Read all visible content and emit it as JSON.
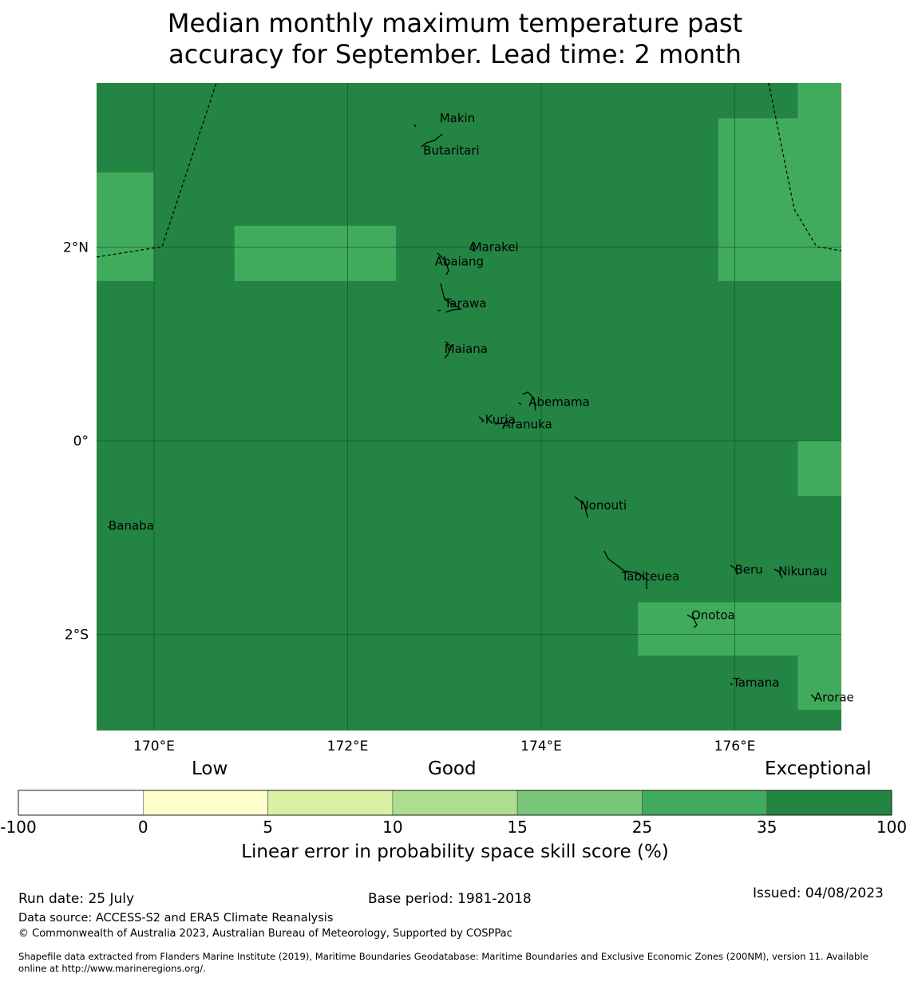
{
  "title_line1": "Median monthly maximum temperature past",
  "title_line2": "accuracy for September. Lead time: 2 month",
  "map": {
    "lon_range": [
      169.4,
      177.1
    ],
    "lat_range": [
      -3.0,
      3.2
    ],
    "lat_ticks": [
      {
        "value": 2,
        "label": "2°N"
      },
      {
        "value": 0,
        "label": "0°"
      },
      {
        "value": -2,
        "label": "2°S"
      }
    ],
    "lon_ticks": [
      {
        "value": 170,
        "label": "170°E"
      },
      {
        "value": 172,
        "label": "172°E"
      },
      {
        "value": 174,
        "label": "174°E"
      },
      {
        "value": 176,
        "label": "176°E"
      }
    ],
    "background_category": "35-100",
    "background_color": "#238443",
    "good_cells": [
      {
        "lon": [
          169.4,
          170.0
        ],
        "lat": [
          1.65,
          2.77
        ],
        "category": "25-35"
      },
      {
        "lon": [
          170.83,
          172.5
        ],
        "lat": [
          1.65,
          2.22
        ],
        "category": "25-35"
      },
      {
        "lon": [
          175.83,
          177.1
        ],
        "lat": [
          1.65,
          3.33
        ],
        "category": "25-35"
      },
      {
        "lon": [
          176.65,
          177.1
        ],
        "lat": [
          3.33,
          3.7
        ],
        "category": "25-35"
      },
      {
        "lon": [
          176.65,
          177.1
        ],
        "lat": [
          -0.57,
          0.0
        ],
        "category": "25-35"
      },
      {
        "lon": [
          175.0,
          177.1
        ],
        "lat": [
          -2.22,
          -1.67
        ],
        "category": "25-35"
      },
      {
        "lon": [
          176.65,
          177.1
        ],
        "lat": [
          -2.78,
          -2.22
        ],
        "category": "25-35"
      }
    ],
    "good_color": "#41ab5d",
    "islands": [
      {
        "name": "Makin",
        "lon": 172.95,
        "lat": 3.33
      },
      {
        "name": "Butaritari",
        "lon": 172.78,
        "lat": 3.0
      },
      {
        "name": "Marakei",
        "lon": 173.28,
        "lat": 2.0
      },
      {
        "name": "Abaiang",
        "lon": 172.9,
        "lat": 1.85
      },
      {
        "name": "Tarawa",
        "lon": 173.0,
        "lat": 1.42
      },
      {
        "name": "Maiana",
        "lon": 173.0,
        "lat": 0.95
      },
      {
        "name": "Abemama",
        "lon": 173.87,
        "lat": 0.4
      },
      {
        "name": "Kuria",
        "lon": 173.42,
        "lat": 0.22
      },
      {
        "name": "Aranuka",
        "lon": 173.6,
        "lat": 0.17
      },
      {
        "name": "Nonouti",
        "lon": 174.4,
        "lat": -0.67
      },
      {
        "name": "Banaba",
        "lon": 169.53,
        "lat": -0.88
      },
      {
        "name": "Beru",
        "lon": 176.0,
        "lat": -1.33
      },
      {
        "name": "Tabiteuea",
        "lon": 174.83,
        "lat": -1.4
      },
      {
        "name": "Nikunau",
        "lon": 176.45,
        "lat": -1.35
      },
      {
        "name": "Onotoa",
        "lon": 175.55,
        "lat": -1.8
      },
      {
        "name": "Tamana",
        "lon": 175.98,
        "lat": -2.5
      },
      {
        "name": "Arorae",
        "lon": 176.82,
        "lat": -2.65
      }
    ]
  },
  "colorbar": {
    "category_labels": [
      "Low",
      "Good",
      "Exceptional"
    ],
    "boundaries": [
      "-100",
      "0",
      "5",
      "10",
      "15",
      "25",
      "35",
      "100"
    ],
    "colors": [
      "#ffffff",
      "#ffffcc",
      "#d9f0a3",
      "#addd8e",
      "#78c679",
      "#41ab5d",
      "#238443"
    ],
    "label": "Linear error in probability space skill score (%)"
  },
  "footer": {
    "run_date": "Run date: 25 July",
    "base_period": "Base period: 1981-2018",
    "issued": "Issued: 04/08/2023",
    "data_source": "Data source: ACCESS-S2 and ERA5 Climate Reanalysis",
    "copyright": "© Commonwealth of Australia 2023, Australian Bureau of Meteorology, Supported by COSPPac",
    "shapefile_line1": "Shapefile data extracted from Flanders Marine Institute (2019), Maritime Boundaries Geodatabase: Maritime Boundaries and Exclusive Economic Zones (200NM), version 11. Available",
    "shapefile_line2": "online at http://www.marineregions.org/."
  }
}
